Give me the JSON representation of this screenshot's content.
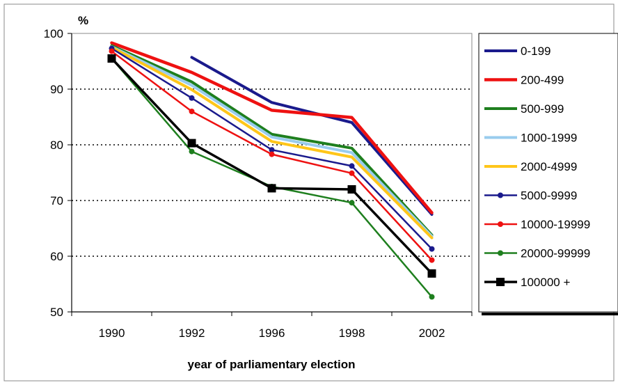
{
  "chart_data": {
    "type": "line",
    "title": "",
    "xlabel": "year of parliamentary election",
    "ylabel": "%",
    "categories": [
      "1990",
      "1992",
      "1996",
      "1998",
      "2002"
    ],
    "ylim": [
      50,
      100
    ],
    "yticks": [
      50,
      60,
      70,
      80,
      90,
      100
    ],
    "grid": "horizontal-dotted",
    "legend_position": "right",
    "series": [
      {
        "name": "0-199",
        "color": "#1a1a8c",
        "marker": "none",
        "width": 4,
        "values": [
          null,
          95.7,
          87.6,
          84.0,
          67.5
        ]
      },
      {
        "name": "200-499",
        "color": "#ee1111",
        "marker": "none",
        "width": 4.5,
        "values": [
          98.3,
          93.0,
          86.2,
          84.9,
          67.8
        ]
      },
      {
        "name": "500-999",
        "color": "#1e7f1e",
        "marker": "none",
        "width": 4,
        "values": [
          97.8,
          91.3,
          81.9,
          79.4,
          63.8
        ]
      },
      {
        "name": "1000-1999",
        "color": "#99ccee",
        "marker": "none",
        "width": 4,
        "values": [
          97.6,
          90.7,
          81.4,
          78.6,
          63.6
        ]
      },
      {
        "name": "2000-4999",
        "color": "#ffc61a",
        "marker": "none",
        "width": 4,
        "values": [
          97.5,
          89.9,
          80.6,
          77.8,
          63.3
        ]
      },
      {
        "name": "5000-9999",
        "color": "#1a1a8c",
        "marker": "dot",
        "width": 2.5,
        "values": [
          97.3,
          88.4,
          79.1,
          76.2,
          61.3
        ]
      },
      {
        "name": "10000-19999",
        "color": "#ee1111",
        "marker": "dot",
        "width": 2.5,
        "values": [
          96.8,
          86.0,
          78.3,
          74.9,
          59.3
        ]
      },
      {
        "name": "20000-99999",
        "color": "#1e7f1e",
        "marker": "dot",
        "width": 2.5,
        "values": [
          95.5,
          78.8,
          72.5,
          69.6,
          52.7
        ]
      },
      {
        "name": "100000 +",
        "color": "#000000",
        "marker": "square",
        "width": 3.5,
        "values": [
          95.5,
          80.3,
          72.2,
          72.0,
          56.9
        ]
      }
    ]
  }
}
